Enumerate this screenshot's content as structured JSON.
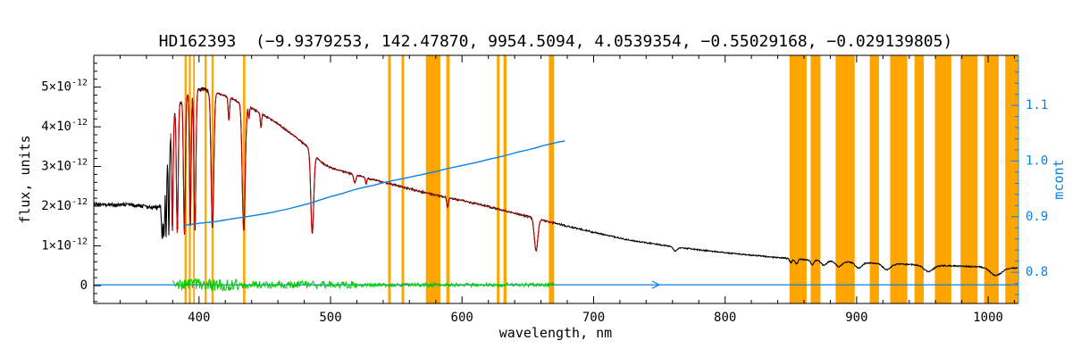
{
  "chart_data": {
    "type": "line",
    "title": "HD162393  (−9.9379253, 142.47870, 9954.5094, 4.0539354, −0.55029168, −0.029139805)",
    "xlabel": "wavelength, nm",
    "ylabel_left": "flux, units",
    "ylabel_right": "mcont",
    "x_range": [
      320,
      1023
    ],
    "y_left_range_1e12": [
      -0.45,
      5.8
    ],
    "y_right_range": [
      0.744,
      1.19
    ],
    "x_ticks": [
      {
        "v": 400,
        "label": "400"
      },
      {
        "v": 500,
        "label": "500"
      },
      {
        "v": 600,
        "label": "600"
      },
      {
        "v": 700,
        "label": "700"
      },
      {
        "v": 800,
        "label": "800"
      },
      {
        "v": 900,
        "label": "900"
      },
      {
        "v": 1000,
        "label": "1000"
      }
    ],
    "x_minor_step": 20,
    "y_left_ticks": [
      {
        "v": 0,
        "main": "0",
        "sup": ""
      },
      {
        "v": 1,
        "main": "1×10",
        "sup": "-12"
      },
      {
        "v": 2,
        "main": "2×10",
        "sup": "-12"
      },
      {
        "v": 3,
        "main": "3×10",
        "sup": "-12"
      },
      {
        "v": 4,
        "main": "4×10",
        "sup": "-12"
      },
      {
        "v": 5,
        "main": "5×10",
        "sup": "-12"
      }
    ],
    "y_left_minor_step": 0.2,
    "y_right_ticks": [
      {
        "v": 0.8,
        "label": "0.8"
      },
      {
        "v": 0.9,
        "label": "0.9"
      },
      {
        "v": 1.0,
        "label": "1.0"
      },
      {
        "v": 1.1,
        "label": "1.1"
      }
    ],
    "y_right_minor_step": 0.02,
    "flux_unit_scale": "1e-12",
    "series": {
      "spectrum": {
        "name": "observed-spectrum",
        "continuum_1e12": [
          [
            320,
            2.06
          ],
          [
            326,
            2.03
          ],
          [
            332,
            2.05
          ],
          [
            338,
            2.02
          ],
          [
            344,
            2.04
          ],
          [
            350,
            2.02
          ],
          [
            356,
            2.0
          ],
          [
            361,
            1.99
          ],
          [
            364,
            1.96
          ],
          [
            367,
            1.99
          ],
          [
            369,
            1.93
          ],
          [
            371,
            2.0
          ],
          [
            372,
            2.2
          ],
          [
            374,
            2.9
          ],
          [
            376,
            3.5
          ],
          [
            378,
            4.0
          ],
          [
            380,
            4.25
          ],
          [
            382,
            4.4
          ],
          [
            384,
            4.52
          ],
          [
            386,
            4.62
          ],
          [
            388,
            4.72
          ],
          [
            390,
            4.8
          ],
          [
            393,
            4.86
          ],
          [
            396,
            4.9
          ],
          [
            399,
            4.93
          ],
          [
            402,
            4.95
          ],
          [
            405,
            4.92
          ],
          [
            408,
            4.89
          ],
          [
            411,
            4.86
          ],
          [
            414,
            4.84
          ],
          [
            418,
            4.8
          ],
          [
            422,
            4.75
          ],
          [
            426,
            4.7
          ],
          [
            430,
            4.62
          ],
          [
            434,
            4.56
          ],
          [
            438,
            4.5
          ],
          [
            442,
            4.43
          ],
          [
            446,
            4.36
          ],
          [
            450,
            4.28
          ],
          [
            455,
            4.18
          ],
          [
            460,
            4.07
          ],
          [
            465,
            3.95
          ],
          [
            470,
            3.83
          ],
          [
            475,
            3.7
          ],
          [
            480,
            3.56
          ],
          [
            485,
            3.42
          ],
          [
            490,
            3.2
          ],
          [
            495,
            3.06
          ],
          [
            500,
            2.97
          ],
          [
            506,
            2.91
          ],
          [
            512,
            2.85
          ],
          [
            518,
            2.79
          ],
          [
            524,
            2.74
          ],
          [
            530,
            2.69
          ],
          [
            536,
            2.64
          ],
          [
            542,
            2.59
          ],
          [
            548,
            2.54
          ],
          [
            554,
            2.49
          ],
          [
            560,
            2.44
          ],
          [
            566,
            2.39
          ],
          [
            572,
            2.34
          ],
          [
            578,
            2.29
          ],
          [
            584,
            2.25
          ],
          [
            590,
            2.21
          ],
          [
            596,
            2.17
          ],
          [
            602,
            2.13
          ],
          [
            608,
            2.08
          ],
          [
            614,
            2.04
          ],
          [
            620,
            1.99
          ],
          [
            626,
            1.94
          ],
          [
            632,
            1.89
          ],
          [
            638,
            1.84
          ],
          [
            644,
            1.79
          ],
          [
            650,
            1.74
          ],
          [
            656,
            1.69
          ],
          [
            662,
            1.64
          ],
          [
            668,
            1.59
          ],
          [
            674,
            1.55
          ],
          [
            680,
            1.5
          ],
          [
            686,
            1.45
          ],
          [
            692,
            1.41
          ],
          [
            698,
            1.36
          ],
          [
            706,
            1.3
          ],
          [
            714,
            1.24
          ],
          [
            722,
            1.18
          ],
          [
            730,
            1.13
          ],
          [
            738,
            1.09
          ],
          [
            746,
            1.05
          ],
          [
            754,
            1.01
          ],
          [
            762,
            0.97
          ],
          [
            770,
            0.94
          ],
          [
            778,
            0.91
          ],
          [
            786,
            0.88
          ],
          [
            794,
            0.85
          ],
          [
            802,
            0.82
          ],
          [
            810,
            0.8
          ],
          [
            818,
            0.77
          ],
          [
            826,
            0.75
          ],
          [
            834,
            0.72
          ],
          [
            842,
            0.7
          ],
          [
            850,
            0.68
          ],
          [
            858,
            0.66
          ],
          [
            866,
            0.645
          ],
          [
            874,
            0.63
          ],
          [
            882,
            0.615
          ],
          [
            890,
            0.6
          ],
          [
            898,
            0.59
          ],
          [
            906,
            0.575
          ],
          [
            914,
            0.565
          ],
          [
            922,
            0.555
          ],
          [
            930,
            0.545
          ],
          [
            938,
            0.535
          ],
          [
            946,
            0.525
          ],
          [
            954,
            0.515
          ],
          [
            962,
            0.505
          ],
          [
            970,
            0.5
          ],
          [
            978,
            0.49
          ],
          [
            986,
            0.48
          ],
          [
            994,
            0.475
          ],
          [
            1002,
            0.465
          ],
          [
            1010,
            0.455
          ],
          [
            1016,
            0.45
          ],
          [
            1023,
            0.44
          ]
        ],
        "absorption_lines_center_sigma_depth": [
          [
            372.0,
            0.45,
            1.0
          ],
          [
            373.4,
            0.45,
            1.5
          ],
          [
            375.0,
            0.45,
            1.9
          ],
          [
            377.1,
            0.5,
            2.4
          ],
          [
            379.8,
            0.55,
            2.9
          ],
          [
            383.5,
            0.65,
            3.2
          ],
          [
            388.9,
            0.7,
            3.5
          ],
          [
            393.4,
            0.6,
            3.4
          ],
          [
            396.9,
            0.7,
            3.55
          ],
          [
            410.2,
            1.0,
            3.4
          ],
          [
            422.7,
            0.5,
            0.6
          ],
          [
            434.0,
            1.1,
            3.2
          ],
          [
            438.0,
            0.4,
            0.3
          ],
          [
            447.1,
            0.5,
            0.35
          ],
          [
            486.1,
            1.1,
            2.05
          ],
          [
            518.4,
            0.8,
            0.2
          ],
          [
            527.0,
            0.5,
            0.15
          ],
          [
            589.0,
            0.6,
            0.25
          ],
          [
            656.3,
            1.3,
            0.82
          ],
          [
            762.0,
            1.5,
            0.1
          ],
          [
            850.0,
            1.0,
            0.1
          ],
          [
            854.2,
            1.1,
            0.12
          ],
          [
            866.2,
            1.1,
            0.12
          ],
          [
            875.1,
            2.0,
            0.12
          ],
          [
            886.5,
            2.2,
            0.13
          ],
          [
            901.5,
            2.5,
            0.14
          ],
          [
            923.0,
            3.0,
            0.15
          ],
          [
            954.6,
            3.5,
            0.16
          ],
          [
            1006.0,
            4.5,
            0.2
          ]
        ],
        "noise_segments_1e12": [
          [
            320,
            366,
            0.045
          ],
          [
            366,
            371,
            0.07
          ],
          [
            371,
            379.5,
            0.16
          ],
          [
            379.5,
            412,
            0.05
          ],
          [
            412,
            700,
            0.022
          ],
          [
            700,
            1023,
            0.015
          ]
        ],
        "sample_step_nm": 0.35
      },
      "model": {
        "name": "fitted-model",
        "x_range": [
          378.5,
          670.5
        ]
      },
      "residual": {
        "name": "fit-residual",
        "x_range": [
          380,
          670
        ],
        "baseline_1e12": 0.02,
        "amplitude_segments_1e12": [
          [
            380,
            430,
            0.15
          ],
          [
            430,
            520,
            0.09
          ],
          [
            520,
            670,
            0.05
          ]
        ]
      },
      "mcont": {
        "name": "mcont-curve",
        "points": [
          [
            388,
            0.884
          ],
          [
            396,
            0.887
          ],
          [
            404,
            0.889
          ],
          [
            412,
            0.891
          ],
          [
            420,
            0.894
          ],
          [
            428,
            0.897
          ],
          [
            436,
            0.9
          ],
          [
            444,
            0.903
          ],
          [
            452,
            0.906
          ],
          [
            460,
            0.91
          ],
          [
            468,
            0.914
          ],
          [
            476,
            0.919
          ],
          [
            484,
            0.924
          ],
          [
            492,
            0.93
          ],
          [
            500,
            0.936
          ],
          [
            508,
            0.941
          ],
          [
            516,
            0.947
          ],
          [
            524,
            0.952
          ],
          [
            532,
            0.956
          ],
          [
            540,
            0.961
          ],
          [
            548,
            0.965
          ],
          [
            556,
            0.969
          ],
          [
            564,
            0.973
          ],
          [
            572,
            0.977
          ],
          [
            580,
            0.981
          ],
          [
            588,
            0.986
          ],
          [
            596,
            0.99
          ],
          [
            604,
            0.994
          ],
          [
            612,
            0.998
          ],
          [
            620,
            1.003
          ],
          [
            628,
            1.007
          ],
          [
            636,
            1.012
          ],
          [
            644,
            1.017
          ],
          [
            650,
            1.02
          ],
          [
            655,
            1.023
          ],
          [
            658,
            1.025
          ],
          [
            662,
            1.028
          ],
          [
            668,
            1.031
          ],
          [
            673,
            1.034
          ],
          [
            678,
            1.036
          ]
        ]
      },
      "zero_line": {
        "name": "zero-reference-line",
        "flux_1e12": 0.02,
        "x_range": [
          320,
          1022.5
        ],
        "arrow_x": 750
      }
    },
    "masked_bands_nm": [
      [
        389.0,
        390.6
      ],
      [
        392.2,
        393.8
      ],
      [
        395.5,
        396.8
      ],
      [
        404.3,
        405.8
      ],
      [
        409.5,
        411.0
      ],
      [
        433.5,
        435.3
      ],
      [
        543.8,
        545.8
      ],
      [
        554.0,
        556.0
      ],
      [
        572.5,
        583.5
      ],
      [
        588.0,
        590.5
      ],
      [
        626.5,
        628.5
      ],
      [
        631.5,
        633.8
      ],
      [
        666.0,
        670.0
      ],
      [
        849.0,
        862.0
      ],
      [
        865.0,
        872.5
      ],
      [
        884.0,
        898.5
      ],
      [
        910.0,
        917.0
      ],
      [
        925.5,
        938.5
      ],
      [
        944.0,
        951.0
      ],
      [
        959.5,
        972.0
      ],
      [
        979.0,
        992.0
      ],
      [
        997.0,
        1008.0
      ],
      [
        1013.0,
        1022.5
      ]
    ],
    "colors": {
      "spectrum": "#000000",
      "model": "#cc0000",
      "residual": "#00cc00",
      "mcont": "#0c80e0",
      "masked": "#ffa500",
      "axis": "#000000",
      "background": "#ffffff"
    },
    "legend": "none",
    "grid": "off"
  }
}
